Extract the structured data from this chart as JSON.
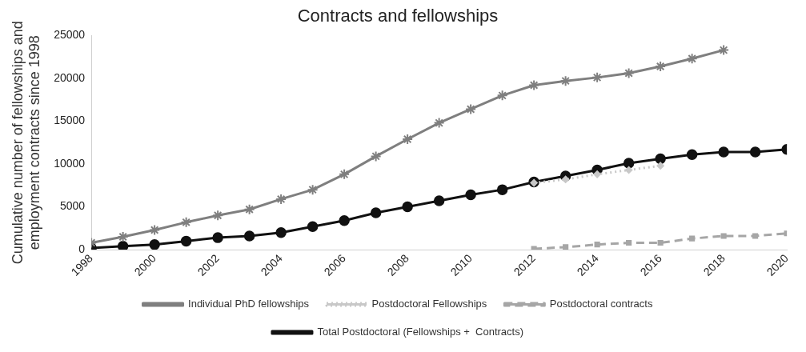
{
  "chart_data": {
    "type": "line",
    "title": "Contracts and fellowships",
    "ylabel": "Cumulative number of fellowships and employment contracts since 1998",
    "xlim": [
      1998,
      2020
    ],
    "xticks": [
      1998,
      2000,
      2002,
      2004,
      2006,
      2008,
      2010,
      2012,
      2014,
      2016,
      2018,
      2020
    ],
    "ylim": [
      0,
      25000
    ],
    "yticks": [
      0,
      5000,
      10000,
      15000,
      20000,
      25000
    ],
    "grid": false,
    "legend": "bottom",
    "series": [
      {
        "name": "Individual PhD fellowships",
        "color": "#7f7f7f",
        "marker": "cross",
        "line_style": "solid",
        "x": [
          1998,
          1999,
          2000,
          2001,
          2002,
          2003,
          2004,
          2005,
          2006,
          2007,
          2008,
          2009,
          2010,
          2011,
          2012,
          2013,
          2014,
          2015,
          2016,
          2017,
          2018
        ],
        "values": [
          800,
          1500,
          2300,
          3200,
          4000,
          4700,
          5900,
          7000,
          8800,
          10900,
          12900,
          14800,
          16400,
          18000,
          19200,
          19700,
          20100,
          20600,
          21400,
          22300,
          23300
        ]
      },
      {
        "name": "Postdoctoral Fellowships",
        "color": "#c8c8c8",
        "marker": "diamond",
        "line_style": "dotted",
        "x": [
          2012,
          2013,
          2014,
          2015,
          2016
        ],
        "values": [
          7800,
          8200,
          8800,
          9300,
          9800
        ]
      },
      {
        "name": "Postdoctoral contracts",
        "color": "#a6a6a6",
        "marker": "square",
        "line_style": "dashed",
        "x": [
          2012,
          2013,
          2014,
          2015,
          2016,
          2017,
          2018,
          2019,
          2020
        ],
        "values": [
          100,
          300,
          600,
          800,
          800,
          1300,
          1600,
          1600,
          1900
        ]
      },
      {
        "name": "Total Postdoctoral (Fellowships +  Contracts)",
        "color": "#111111",
        "marker": "circle",
        "line_style": "solid",
        "x": [
          1998,
          1999,
          2000,
          2001,
          2002,
          2003,
          2004,
          2005,
          2006,
          2007,
          2008,
          2009,
          2010,
          2011,
          2012,
          2013,
          2014,
          2015,
          2016,
          2017,
          2018,
          2019,
          2020
        ],
        "values": [
          200,
          400,
          600,
          1000,
          1400,
          1600,
          2000,
          2700,
          3400,
          4300,
          5000,
          5700,
          6400,
          7000,
          7900,
          8600,
          9300,
          10100,
          10600,
          11100,
          11400,
          11400,
          11700
        ]
      }
    ]
  }
}
